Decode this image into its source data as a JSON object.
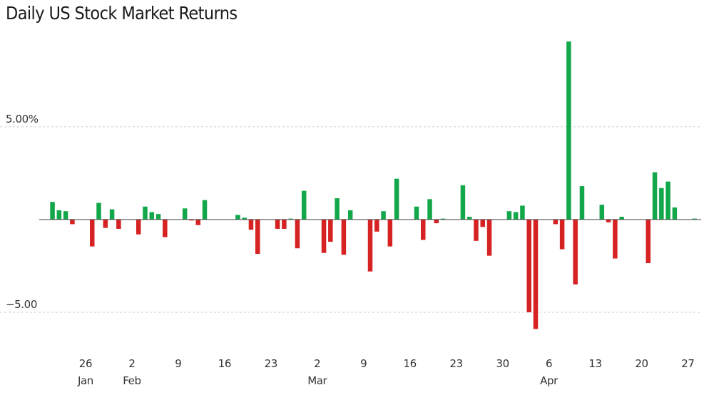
{
  "chart_data": {
    "type": "bar",
    "title": "Daily US Stock Market Returns",
    "xlabel": "",
    "ylabel": "",
    "ylim": [
      -7.0,
      10.3
    ],
    "y_ticks": [
      {
        "value": 5.0,
        "label": "5.00%"
      },
      {
        "value": -5.0,
        "label": "−5.00"
      }
    ],
    "grid": true,
    "positive_color": "#12a74a",
    "negative_color": "#d62222",
    "x_ticks": [
      {
        "date": "2025-01-26",
        "day": "26",
        "month": "Jan"
      },
      {
        "date": "2025-02-02",
        "day": "2",
        "month": "Feb"
      },
      {
        "date": "2025-02-09",
        "day": "9",
        "month": ""
      },
      {
        "date": "2025-02-16",
        "day": "16",
        "month": ""
      },
      {
        "date": "2025-02-23",
        "day": "23",
        "month": ""
      },
      {
        "date": "2025-03-02",
        "day": "2",
        "month": "Mar"
      },
      {
        "date": "2025-03-09",
        "day": "9",
        "month": ""
      },
      {
        "date": "2025-03-16",
        "day": "16",
        "month": ""
      },
      {
        "date": "2025-03-23",
        "day": "23",
        "month": ""
      },
      {
        "date": "2025-03-30",
        "day": "30",
        "month": ""
      },
      {
        "date": "2025-04-06",
        "day": "6",
        "month": "Apr"
      },
      {
        "date": "2025-04-13",
        "day": "13",
        "month": ""
      },
      {
        "date": "2025-04-20",
        "day": "20",
        "month": ""
      },
      {
        "date": "2025-04-27",
        "day": "27",
        "month": ""
      }
    ],
    "x_range": [
      "2025-01-19",
      "2025-04-29"
    ],
    "points": [
      {
        "date": "2025-01-21",
        "value": 0.95
      },
      {
        "date": "2025-01-22",
        "value": 0.5
      },
      {
        "date": "2025-01-23",
        "value": 0.45
      },
      {
        "date": "2025-01-24",
        "value": -0.25
      },
      {
        "date": "2025-01-27",
        "value": -1.45
      },
      {
        "date": "2025-01-28",
        "value": 0.9
      },
      {
        "date": "2025-01-29",
        "value": -0.45
      },
      {
        "date": "2025-01-30",
        "value": 0.55
      },
      {
        "date": "2025-01-31",
        "value": -0.5
      },
      {
        "date": "2025-02-03",
        "value": -0.8
      },
      {
        "date": "2025-02-04",
        "value": 0.7
      },
      {
        "date": "2025-02-05",
        "value": 0.4
      },
      {
        "date": "2025-02-06",
        "value": 0.3
      },
      {
        "date": "2025-02-07",
        "value": -0.95
      },
      {
        "date": "2025-02-10",
        "value": 0.6
      },
      {
        "date": "2025-02-11",
        "value": -0.05
      },
      {
        "date": "2025-02-12",
        "value": -0.3
      },
      {
        "date": "2025-02-13",
        "value": 1.05
      },
      {
        "date": "2025-02-18",
        "value": 0.25
      },
      {
        "date": "2025-02-19",
        "value": 0.1
      },
      {
        "date": "2025-02-20",
        "value": -0.55
      },
      {
        "date": "2025-02-21",
        "value": -1.85
      },
      {
        "date": "2025-02-24",
        "value": -0.5
      },
      {
        "date": "2025-02-25",
        "value": -0.5
      },
      {
        "date": "2025-02-26",
        "value": 0.05
      },
      {
        "date": "2025-02-27",
        "value": -1.55
      },
      {
        "date": "2025-02-28",
        "value": 1.55
      },
      {
        "date": "2025-03-03",
        "value": -1.8
      },
      {
        "date": "2025-03-04",
        "value": -1.2
      },
      {
        "date": "2025-03-05",
        "value": 1.15
      },
      {
        "date": "2025-03-06",
        "value": -1.9
      },
      {
        "date": "2025-03-07",
        "value": 0.5
      },
      {
        "date": "2025-03-10",
        "value": -2.8
      },
      {
        "date": "2025-03-11",
        "value": -0.65
      },
      {
        "date": "2025-03-12",
        "value": 0.45
      },
      {
        "date": "2025-03-13",
        "value": -1.45
      },
      {
        "date": "2025-03-14",
        "value": 2.2
      },
      {
        "date": "2025-03-17",
        "value": 0.7
      },
      {
        "date": "2025-03-18",
        "value": -1.1
      },
      {
        "date": "2025-03-19",
        "value": 1.1
      },
      {
        "date": "2025-03-20",
        "value": -0.2
      },
      {
        "date": "2025-03-21",
        "value": 0.05
      },
      {
        "date": "2025-03-24",
        "value": 1.85
      },
      {
        "date": "2025-03-25",
        "value": 0.15
      },
      {
        "date": "2025-03-26",
        "value": -1.15
      },
      {
        "date": "2025-03-27",
        "value": -0.4
      },
      {
        "date": "2025-03-28",
        "value": -1.95
      },
      {
        "date": "2025-03-31",
        "value": 0.45
      },
      {
        "date": "2025-04-01",
        "value": 0.4
      },
      {
        "date": "2025-04-02",
        "value": 0.75
      },
      {
        "date": "2025-04-03",
        "value": -5.0
      },
      {
        "date": "2025-04-04",
        "value": -5.9
      },
      {
        "date": "2025-04-07",
        "value": -0.25
      },
      {
        "date": "2025-04-08",
        "value": -1.6
      },
      {
        "date": "2025-04-09",
        "value": 9.6
      },
      {
        "date": "2025-04-10",
        "value": -3.5
      },
      {
        "date": "2025-04-11",
        "value": 1.8
      },
      {
        "date": "2025-04-14",
        "value": 0.8
      },
      {
        "date": "2025-04-15",
        "value": -0.15
      },
      {
        "date": "2025-04-16",
        "value": -2.1
      },
      {
        "date": "2025-04-17",
        "value": 0.15
      },
      {
        "date": "2025-04-21",
        "value": -2.35
      },
      {
        "date": "2025-04-22",
        "value": 2.55
      },
      {
        "date": "2025-04-23",
        "value": 1.7
      },
      {
        "date": "2025-04-24",
        "value": 2.05
      },
      {
        "date": "2025-04-25",
        "value": 0.65
      },
      {
        "date": "2025-04-28",
        "value": 0.05
      }
    ]
  }
}
